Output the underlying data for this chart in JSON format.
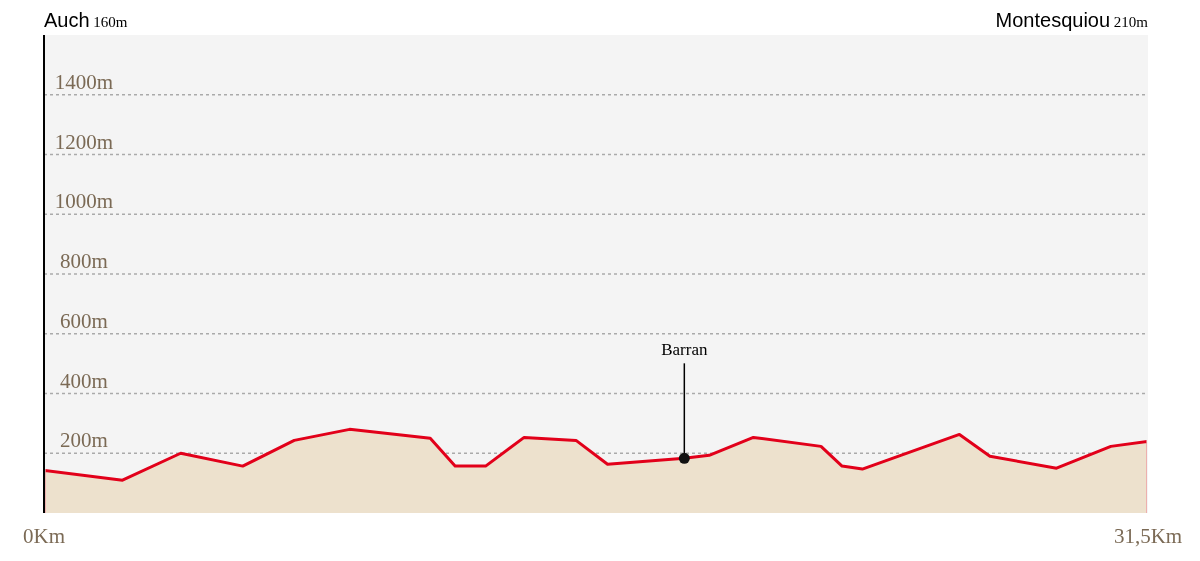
{
  "chart_data": {
    "type": "area",
    "color": "#e2001a",
    "x": [
      0,
      2.24,
      3.9,
      5.67,
      7.14,
      8.72,
      11.02,
      11.73,
      12.6,
      13.7,
      15.18,
      16.08,
      18.27,
      18.98,
      20.24,
      22.17,
      22.77,
      23.35,
      26.12,
      26.99,
      28.89,
      30.44,
      31.5
    ],
    "values": [
      143,
      110,
      200,
      157,
      243,
      280,
      250,
      157,
      157,
      253,
      243,
      163,
      183,
      193,
      253,
      223,
      157,
      147,
      263,
      190,
      150,
      223,
      240
    ],
    "xlim": [
      0,
      31.5
    ],
    "xticks": [
      {
        "value": 0,
        "label": "0Km"
      },
      {
        "value": 31.5,
        "label": "31,5Km"
      }
    ],
    "ylim": [
      0,
      1600
    ],
    "yticks": [
      {
        "value": 200,
        "label": "200m"
      },
      {
        "value": 400,
        "label": "400m"
      },
      {
        "value": 600,
        "label": "600m"
      },
      {
        "value": 800,
        "label": "800m"
      },
      {
        "value": 1000,
        "label": "1000m"
      },
      {
        "value": 1200,
        "label": "1200m"
      },
      {
        "value": 1400,
        "label": "1400m"
      }
    ],
    "grid": "y",
    "line_style": "solid",
    "annotations": [
      "Auch 160m",
      "Montesquiou 210m",
      {
        "text": "Barran",
        "x": 18.27,
        "y": 183
      }
    ]
  }
}
